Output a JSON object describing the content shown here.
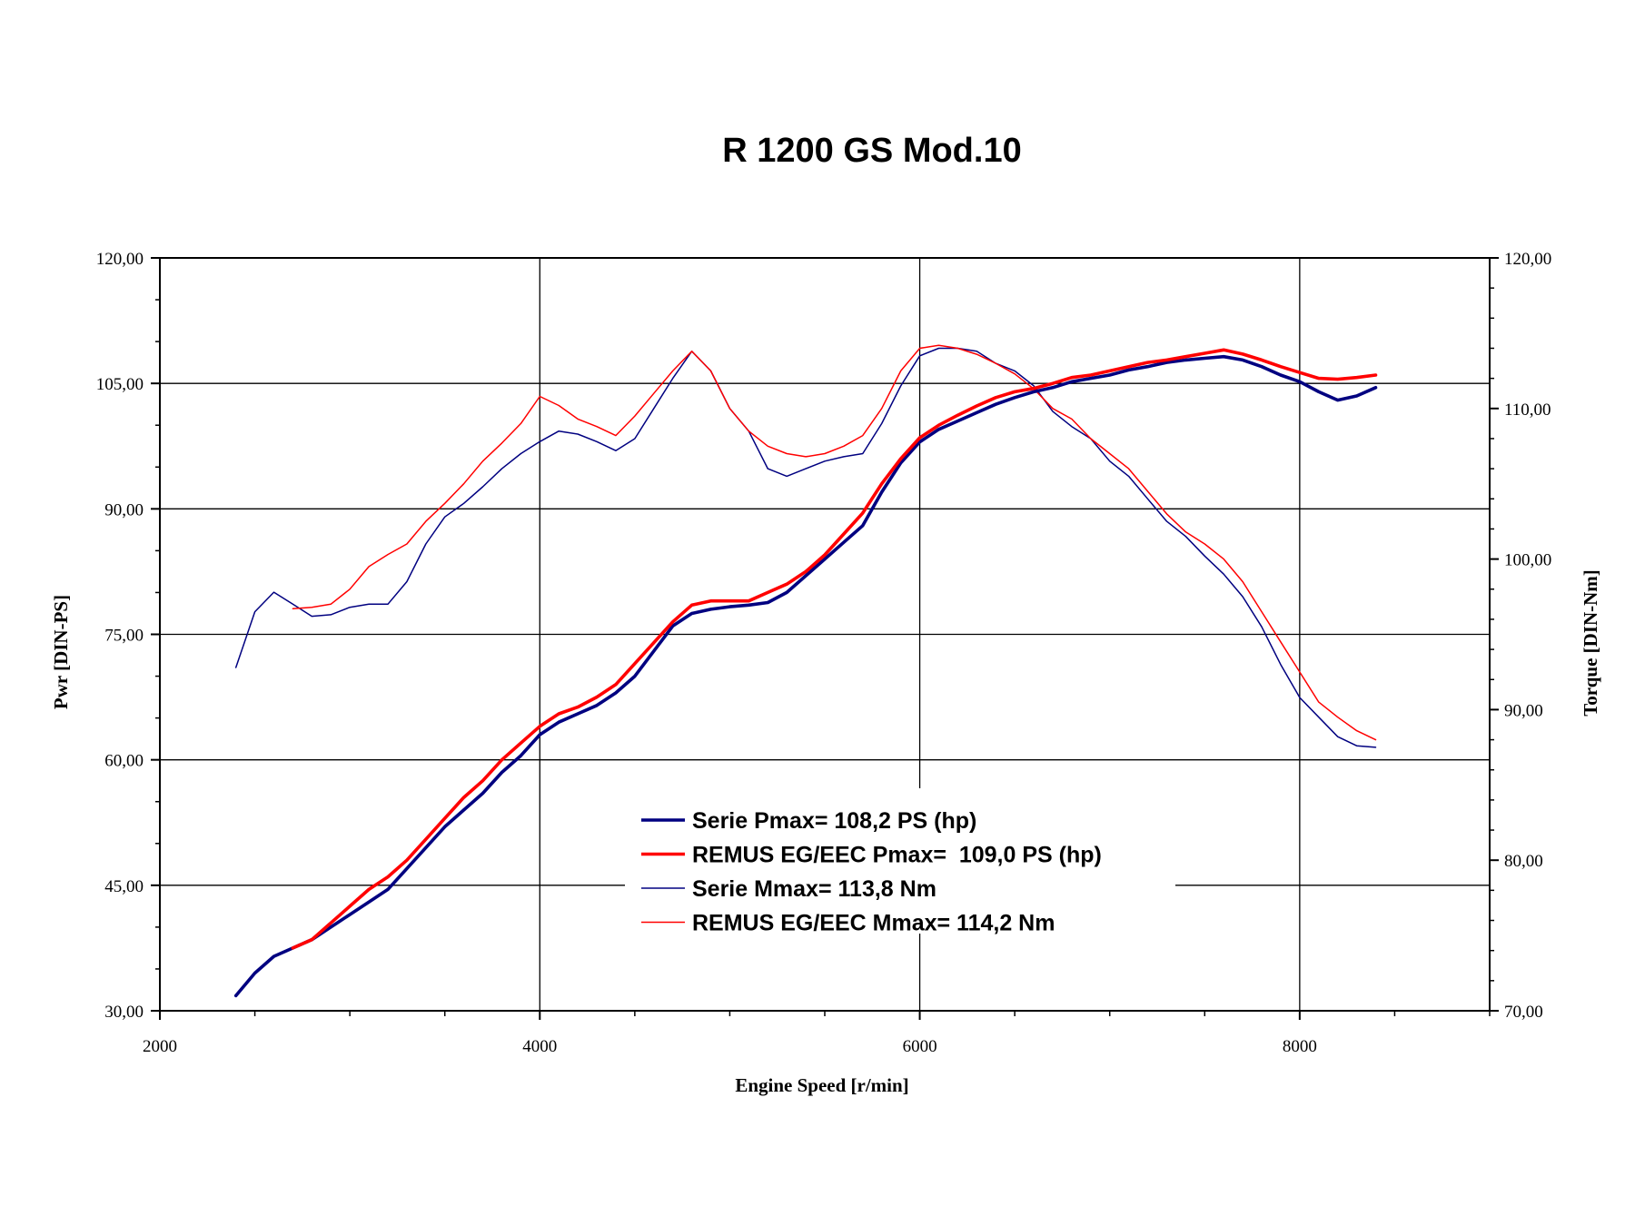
{
  "chart_data": {
    "type": "line",
    "title": "R 1200 GS Mod.10",
    "xlabel": "Engine Speed [r/min]",
    "ylabel_left": "Pwr [DIN-PS]",
    "ylabel_right": "Torque [DIN-Nm]",
    "xlim": [
      2000,
      9000
    ],
    "ylim_left": [
      30,
      120
    ],
    "ylim_right": [
      70,
      120
    ],
    "x_ticks": [
      "2000",
      "4000",
      "6000",
      "8000"
    ],
    "y_ticks_left": [
      "30,00",
      "45,00",
      "60,00",
      "75,00",
      "90,00",
      "105,00",
      "120,00"
    ],
    "y_ticks_right": [
      "70,00",
      "80,00",
      "90,00",
      "100,00",
      "110,00",
      "120,00"
    ],
    "grid": true,
    "legend_position": "center-bottom",
    "series": [
      {
        "name": "Serie Pmax= 108,2 PS (hp)",
        "axis": "left",
        "color": "#000080",
        "width": "thick",
        "points": [
          [
            2400,
            31.8
          ],
          [
            2500,
            34.5
          ],
          [
            2600,
            36.5
          ],
          [
            2700,
            37.5
          ],
          [
            2800,
            38.5
          ],
          [
            2900,
            40
          ],
          [
            3000,
            41.5
          ],
          [
            3100,
            43
          ],
          [
            3200,
            44.5
          ],
          [
            3300,
            47
          ],
          [
            3400,
            49.5
          ],
          [
            3500,
            52
          ],
          [
            3600,
            54
          ],
          [
            3700,
            56
          ],
          [
            3800,
            58.5
          ],
          [
            3900,
            60.5
          ],
          [
            4000,
            63
          ],
          [
            4100,
            64.5
          ],
          [
            4200,
            65.5
          ],
          [
            4300,
            66.5
          ],
          [
            4400,
            68
          ],
          [
            4500,
            70
          ],
          [
            4600,
            73
          ],
          [
            4700,
            76
          ],
          [
            4800,
            77.5
          ],
          [
            4900,
            78
          ],
          [
            5000,
            78.3
          ],
          [
            5100,
            78.5
          ],
          [
            5200,
            78.8
          ],
          [
            5300,
            80
          ],
          [
            5400,
            82
          ],
          [
            5500,
            84
          ],
          [
            5600,
            86
          ],
          [
            5700,
            88
          ],
          [
            5800,
            92
          ],
          [
            5900,
            95.5
          ],
          [
            6000,
            98
          ],
          [
            6100,
            99.5
          ],
          [
            6200,
            100.5
          ],
          [
            6300,
            101.5
          ],
          [
            6400,
            102.5
          ],
          [
            6500,
            103.3
          ],
          [
            6600,
            104
          ],
          [
            6700,
            104.5
          ],
          [
            6800,
            105.2
          ],
          [
            6900,
            105.6
          ],
          [
            7000,
            106
          ],
          [
            7100,
            106.6
          ],
          [
            7200,
            107
          ],
          [
            7300,
            107.5
          ],
          [
            7400,
            107.8
          ],
          [
            7500,
            108
          ],
          [
            7600,
            108.2
          ],
          [
            7700,
            107.8
          ],
          [
            7800,
            107
          ],
          [
            7900,
            106
          ],
          [
            8000,
            105.2
          ],
          [
            8100,
            104
          ],
          [
            8200,
            103
          ],
          [
            8300,
            103.5
          ],
          [
            8400,
            104.5
          ]
        ]
      },
      {
        "name": "REMUS EG/EEC Pmax=  109,0 PS (hp)",
        "axis": "left",
        "color": "#ff0000",
        "width": "thick",
        "points": [
          [
            2700,
            37.5
          ],
          [
            2800,
            38.5
          ],
          [
            2900,
            40.5
          ],
          [
            3000,
            42.5
          ],
          [
            3100,
            44.5
          ],
          [
            3200,
            46
          ],
          [
            3300,
            48
          ],
          [
            3400,
            50.5
          ],
          [
            3500,
            53
          ],
          [
            3600,
            55.5
          ],
          [
            3700,
            57.5
          ],
          [
            3800,
            60
          ],
          [
            3900,
            62
          ],
          [
            4000,
            64
          ],
          [
            4100,
            65.5
          ],
          [
            4200,
            66.3
          ],
          [
            4300,
            67.5
          ],
          [
            4400,
            69
          ],
          [
            4500,
            71.5
          ],
          [
            4600,
            74
          ],
          [
            4700,
            76.5
          ],
          [
            4800,
            78.5
          ],
          [
            4900,
            79
          ],
          [
            5000,
            79
          ],
          [
            5100,
            79
          ],
          [
            5200,
            80
          ],
          [
            5300,
            81
          ],
          [
            5400,
            82.5
          ],
          [
            5500,
            84.5
          ],
          [
            5600,
            87
          ],
          [
            5700,
            89.5
          ],
          [
            5800,
            93
          ],
          [
            5900,
            96
          ],
          [
            6000,
            98.5
          ],
          [
            6100,
            100
          ],
          [
            6200,
            101.2
          ],
          [
            6300,
            102.3
          ],
          [
            6400,
            103.3
          ],
          [
            6500,
            104
          ],
          [
            6600,
            104.4
          ],
          [
            6700,
            105
          ],
          [
            6800,
            105.7
          ],
          [
            6900,
            106
          ],
          [
            7000,
            106.5
          ],
          [
            7100,
            107
          ],
          [
            7200,
            107.5
          ],
          [
            7300,
            107.8
          ],
          [
            7400,
            108.2
          ],
          [
            7500,
            108.6
          ],
          [
            7600,
            109
          ],
          [
            7700,
            108.5
          ],
          [
            7800,
            107.8
          ],
          [
            7900,
            107
          ],
          [
            8000,
            106.3
          ],
          [
            8100,
            105.6
          ],
          [
            8200,
            105.5
          ],
          [
            8300,
            105.7
          ],
          [
            8400,
            106
          ]
        ]
      },
      {
        "name": "Serie Mmax= 113,8 Nm",
        "axis": "right",
        "color": "#000080",
        "width": "thin",
        "points": [
          [
            2400,
            92.8
          ],
          [
            2500,
            96.5
          ],
          [
            2600,
            97.8
          ],
          [
            2700,
            97
          ],
          [
            2800,
            96.2
          ],
          [
            2900,
            96.3
          ],
          [
            3000,
            96.8
          ],
          [
            3100,
            97
          ],
          [
            3200,
            97
          ],
          [
            3300,
            98.5
          ],
          [
            3400,
            101
          ],
          [
            3500,
            102.8
          ],
          [
            3600,
            103.7
          ],
          [
            3700,
            104.8
          ],
          [
            3800,
            106
          ],
          [
            3900,
            107
          ],
          [
            4000,
            107.8
          ],
          [
            4100,
            108.5
          ],
          [
            4200,
            108.3
          ],
          [
            4300,
            107.8
          ],
          [
            4400,
            107.2
          ],
          [
            4500,
            108
          ],
          [
            4600,
            110
          ],
          [
            4700,
            112
          ],
          [
            4800,
            113.8
          ],
          [
            4900,
            112.5
          ],
          [
            5000,
            110
          ],
          [
            5100,
            108.5
          ],
          [
            5200,
            106
          ],
          [
            5300,
            105.5
          ],
          [
            5400,
            106
          ],
          [
            5500,
            106.5
          ],
          [
            5600,
            106.8
          ],
          [
            5700,
            107
          ],
          [
            5800,
            109
          ],
          [
            5900,
            111.5
          ],
          [
            6000,
            113.5
          ],
          [
            6100,
            114
          ],
          [
            6200,
            114
          ],
          [
            6300,
            113.8
          ],
          [
            6400,
            113
          ],
          [
            6500,
            112.5
          ],
          [
            6600,
            111.5
          ],
          [
            6700,
            109.8
          ],
          [
            6800,
            108.8
          ],
          [
            6900,
            108
          ],
          [
            7000,
            106.5
          ],
          [
            7100,
            105.5
          ],
          [
            7200,
            104
          ],
          [
            7300,
            102.5
          ],
          [
            7400,
            101.5
          ],
          [
            7500,
            100.2
          ],
          [
            7600,
            99
          ],
          [
            7700,
            97.5
          ],
          [
            7800,
            95.5
          ],
          [
            7900,
            93
          ],
          [
            8000,
            90.8
          ],
          [
            8100,
            89.5
          ],
          [
            8200,
            88.2
          ],
          [
            8300,
            87.6
          ],
          [
            8400,
            87.5
          ]
        ]
      },
      {
        "name": "REMUS EG/EEC Mmax= 114,2 Nm",
        "axis": "right",
        "color": "#ff0000",
        "width": "thin",
        "points": [
          [
            2700,
            96.7
          ],
          [
            2800,
            96.8
          ],
          [
            2900,
            97
          ],
          [
            3000,
            98
          ],
          [
            3100,
            99.5
          ],
          [
            3200,
            100.3
          ],
          [
            3300,
            101
          ],
          [
            3400,
            102.5
          ],
          [
            3500,
            103.7
          ],
          [
            3600,
            105
          ],
          [
            3700,
            106.5
          ],
          [
            3800,
            107.7
          ],
          [
            3900,
            109
          ],
          [
            4000,
            110.8
          ],
          [
            4100,
            110.2
          ],
          [
            4200,
            109.3
          ],
          [
            4300,
            108.8
          ],
          [
            4400,
            108.2
          ],
          [
            4500,
            109.5
          ],
          [
            4600,
            111
          ],
          [
            4700,
            112.5
          ],
          [
            4800,
            113.8
          ],
          [
            4900,
            112.5
          ],
          [
            5000,
            110
          ],
          [
            5100,
            108.5
          ],
          [
            5200,
            107.5
          ],
          [
            5300,
            107
          ],
          [
            5400,
            106.8
          ],
          [
            5500,
            107
          ],
          [
            5600,
            107.5
          ],
          [
            5700,
            108.2
          ],
          [
            5800,
            110
          ],
          [
            5900,
            112.5
          ],
          [
            6000,
            114
          ],
          [
            6100,
            114.2
          ],
          [
            6200,
            114
          ],
          [
            6300,
            113.6
          ],
          [
            6400,
            113
          ],
          [
            6500,
            112.3
          ],
          [
            6600,
            111.3
          ],
          [
            6700,
            110
          ],
          [
            6800,
            109.3
          ],
          [
            6900,
            108
          ],
          [
            7000,
            107
          ],
          [
            7100,
            106
          ],
          [
            7200,
            104.5
          ],
          [
            7300,
            103
          ],
          [
            7400,
            101.8
          ],
          [
            7500,
            101
          ],
          [
            7600,
            100
          ],
          [
            7700,
            98.5
          ],
          [
            7800,
            96.5
          ],
          [
            7900,
            94.5
          ],
          [
            8000,
            92.5
          ],
          [
            8100,
            90.5
          ],
          [
            8200,
            89.5
          ],
          [
            8300,
            88.6
          ],
          [
            8400,
            88
          ]
        ]
      }
    ]
  }
}
